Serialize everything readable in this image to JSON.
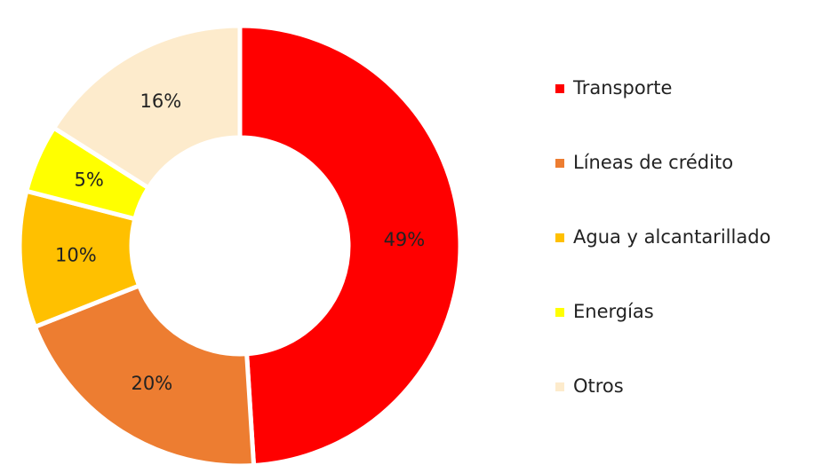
{
  "chart_data": {
    "type": "donut",
    "categories": [
      "Transporte",
      "Líneas de crédito",
      "Agua y alcantarillado",
      "Energías",
      "Otros"
    ],
    "values": [
      49,
      20,
      10,
      5,
      16
    ],
    "value_labels": [
      "49%",
      "20%",
      "10%",
      "5%",
      "16%"
    ],
    "colors": [
      "#ff0000",
      "#ed7d31",
      "#ffc000",
      "#ffff00",
      "#fdebcc"
    ],
    "legend": "right"
  }
}
